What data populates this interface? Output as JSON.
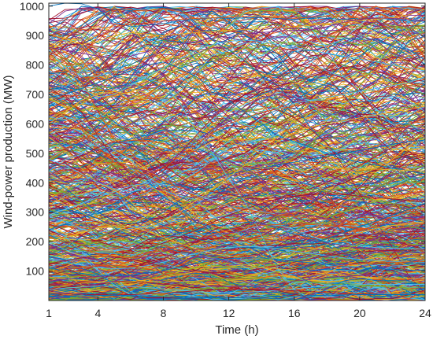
{
  "chart_data": {
    "type": "line",
    "title": "",
    "xlabel": "Time (h)",
    "ylabel": "Wind-power production (MW)",
    "xlim": [
      1,
      24
    ],
    "ylim": [
      0,
      1010
    ],
    "xticks": [
      1,
      4,
      8,
      12,
      16,
      20,
      24
    ],
    "yticks": [
      100,
      200,
      300,
      400,
      500,
      600,
      700,
      800,
      900,
      1000
    ],
    "x": [
      1,
      2,
      3,
      4,
      5,
      6,
      7,
      8,
      9,
      10,
      11,
      12,
      13,
      14,
      15,
      16,
      17,
      18,
      19,
      20,
      21,
      22,
      23,
      24
    ],
    "grid": false,
    "legend": "none",
    "scenario_count": 1000,
    "series_colors": [
      "#0072BD",
      "#D95319",
      "#EDB120",
      "#7E2F8E",
      "#77AC30",
      "#4DBEEE",
      "#A2142F"
    ],
    "series": [
      {
        "values": [
          1000,
          1010,
          1008,
          990,
          945,
          930,
          935,
          940,
          950,
          955,
          960,
          958,
          960,
          962,
          958,
          955,
          960,
          958,
          955,
          960,
          958,
          955,
          950,
          948
        ]
      },
      {
        "values": [
          932,
          928,
          920,
          925,
          930,
          938,
          942,
          950,
          955,
          958,
          960,
          962,
          965,
          963,
          960,
          958,
          962,
          965,
          963,
          960,
          958,
          962,
          955,
          950
        ]
      },
      {
        "values": [
          905,
          890,
          870,
          880,
          900,
          910,
          905,
          900,
          905,
          910,
          915,
          918,
          920,
          925,
          928,
          930,
          935,
          940,
          945,
          950,
          955,
          960,
          970,
          990
        ]
      },
      {
        "values": [
          860,
          850,
          840,
          830,
          820,
          830,
          845,
          860,
          870,
          880,
          890,
          900,
          905,
          910,
          915,
          918,
          920,
          930,
          945,
          955,
          960,
          958,
          955,
          950
        ]
      },
      {
        "values": [
          820,
          780,
          700,
          650,
          600,
          560,
          580,
          620,
          680,
          720,
          760,
          800,
          840,
          870,
          880,
          870,
          850,
          820,
          800,
          780,
          760,
          740,
          720,
          700
        ]
      },
      {
        "values": [
          780,
          760,
          720,
          690,
          700,
          730,
          760,
          790,
          820,
          850,
          870,
          880,
          885,
          880,
          870,
          860,
          850,
          840,
          830,
          820,
          810,
          800,
          790,
          780
        ]
      },
      {
        "values": [
          720,
          690,
          640,
          560,
          480,
          430,
          410,
          440,
          500,
          560,
          620,
          660,
          700,
          720,
          730,
          740,
          760,
          780,
          790,
          800,
          780,
          760,
          740,
          720
        ]
      },
      {
        "values": [
          690,
          700,
          720,
          740,
          760,
          780,
          800,
          810,
          790,
          760,
          720,
          680,
          640,
          600,
          560,
          540,
          520,
          500,
          480,
          470,
          460,
          450,
          440,
          430
        ]
      },
      {
        "values": [
          650,
          620,
          580,
          520,
          470,
          440,
          430,
          450,
          490,
          530,
          570,
          600,
          620,
          640,
          650,
          660,
          670,
          680,
          690,
          700,
          710,
          720,
          730,
          740
        ]
      },
      {
        "values": [
          600,
          640,
          680,
          700,
          710,
          700,
          680,
          650,
          620,
          590,
          560,
          540,
          520,
          500,
          480,
          470,
          460,
          455,
          450,
          448,
          446,
          444,
          442,
          440
        ]
      },
      {
        "values": [
          560,
          520,
          480,
          450,
          430,
          420,
          430,
          460,
          500,
          540,
          580,
          620,
          660,
          690,
          700,
          690,
          670,
          650,
          630,
          610,
          600,
          590,
          585,
          580
        ]
      },
      {
        "values": [
          520,
          540,
          560,
          600,
          640,
          660,
          650,
          620,
          580,
          540,
          500,
          470,
          440,
          420,
          400,
          390,
          380,
          370,
          360,
          350,
          340,
          330,
          320,
          310
        ]
      },
      {
        "values": [
          480,
          460,
          430,
          400,
          380,
          370,
          380,
          400,
          430,
          460,
          500,
          540,
          580,
          620,
          650,
          670,
          680,
          690,
          700,
          710,
          720,
          730,
          740,
          760
        ]
      },
      {
        "values": [
          450,
          470,
          490,
          520,
          540,
          530,
          500,
          460,
          420,
          390,
          370,
          360,
          350,
          345,
          350,
          360,
          380,
          400,
          430,
          460,
          490,
          520,
          550,
          580
        ]
      },
      {
        "values": [
          420,
          380,
          340,
          300,
          270,
          260,
          270,
          300,
          340,
          380,
          410,
          430,
          440,
          450,
          460,
          470,
          480,
          490,
          500,
          510,
          520,
          530,
          540,
          545
        ]
      },
      {
        "values": [
          400,
          420,
          440,
          460,
          470,
          460,
          440,
          410,
          380,
          350,
          330,
          320,
          310,
          300,
          290,
          285,
          280,
          275,
          270,
          268,
          266,
          264,
          262,
          260
        ]
      },
      {
        "values": [
          370,
          340,
          300,
          270,
          250,
          240,
          250,
          270,
          300,
          340,
          380,
          420,
          460,
          500,
          540,
          570,
          590,
          600,
          610,
          620,
          630,
          640,
          650,
          660
        ]
      },
      {
        "values": [
          340,
          360,
          390,
          420,
          440,
          450,
          440,
          420,
          390,
          360,
          330,
          300,
          280,
          260,
          250,
          240,
          235,
          230,
          228,
          226,
          224,
          222,
          220,
          218
        ]
      },
      {
        "values": [
          310,
          290,
          260,
          230,
          210,
          200,
          210,
          230,
          260,
          290,
          320,
          340,
          350,
          355,
          360,
          365,
          370,
          375,
          380,
          385,
          390,
          395,
          400,
          405
        ]
      },
      {
        "values": [
          290,
          310,
          330,
          350,
          370,
          390,
          400,
          395,
          380,
          360,
          340,
          320,
          300,
          280,
          260,
          240,
          220,
          200,
          190,
          185,
          180,
          178,
          176,
          175
        ]
      },
      {
        "values": [
          260,
          240,
          220,
          200,
          185,
          175,
          180,
          195,
          215,
          240,
          265,
          290,
          310,
          330,
          345,
          355,
          360,
          362,
          360,
          355,
          350,
          345,
          340,
          335
        ]
      },
      {
        "values": [
          240,
          260,
          280,
          300,
          310,
          300,
          280,
          255,
          230,
          210,
          195,
          185,
          180,
          178,
          180,
          185,
          195,
          210,
          230,
          250,
          270,
          290,
          310,
          330
        ]
      },
      {
        "values": [
          215,
          195,
          175,
          160,
          150,
          145,
          150,
          165,
          185,
          205,
          225,
          240,
          250,
          255,
          258,
          260,
          258,
          255,
          250,
          245,
          240,
          235,
          230,
          225
        ]
      },
      {
        "values": [
          200,
          215,
          230,
          245,
          255,
          250,
          235,
          215,
          195,
          175,
          160,
          150,
          145,
          142,
          145,
          155,
          170,
          190,
          210,
          230,
          245,
          255,
          262,
          268
        ]
      },
      {
        "values": [
          180,
          165,
          150,
          140,
          135,
          138,
          148,
          165,
          185,
          205,
          220,
          230,
          235,
          232,
          225,
          215,
          205,
          195,
          185,
          178,
          172,
          168,
          165,
          162
        ]
      },
      {
        "values": [
          160,
          175,
          190,
          200,
          205,
          200,
          185,
          165,
          145,
          130,
          120,
          115,
          112,
          115,
          122,
          135,
          150,
          165,
          178,
          188,
          195,
          200,
          202,
          204
        ]
      },
      {
        "values": [
          140,
          130,
          120,
          112,
          108,
          110,
          118,
          130,
          145,
          160,
          172,
          180,
          184,
          182,
          176,
          168,
          160,
          152,
          145,
          140,
          136,
          133,
          131,
          130
        ]
      },
      {
        "values": [
          125,
          135,
          145,
          150,
          148,
          140,
          128,
          115,
          105,
          98,
          95,
          96,
          100,
          108,
          118,
          130,
          142,
          152,
          160,
          165,
          168,
          170,
          171,
          172
        ]
      },
      {
        "values": [
          110,
          100,
          92,
          86,
          84,
          86,
          92,
          102,
          114,
          126,
          136,
          142,
          145,
          144,
          140,
          134,
          128,
          122,
          116,
          112,
          108,
          105,
          103,
          102
        ]
      },
      {
        "values": [
          95,
          104,
          112,
          118,
          120,
          116,
          108,
          98,
          88,
          80,
          75,
          73,
          74,
          78,
          85,
          94,
          104,
          113,
          120,
          125,
          128,
          130,
          131,
          132
        ]
      },
      {
        "values": [
          80,
          74,
          68,
          64,
          62,
          64,
          70,
          78,
          88,
          98,
          106,
          111,
          113,
          112,
          108,
          102,
          96,
          90,
          85,
          81,
          78,
          76,
          75,
          74
        ]
      },
      {
        "values": [
          65,
          72,
          78,
          82,
          83,
          80,
          74,
          66,
          58,
          52,
          48,
          47,
          48,
          52,
          58,
          65,
          72,
          78,
          82,
          85,
          86,
          87,
          87,
          88
        ]
      },
      {
        "values": [
          50,
          46,
          42,
          40,
          39,
          40,
          44,
          50,
          57,
          64,
          70,
          74,
          76,
          75,
          72,
          67,
          62,
          57,
          53,
          50,
          48,
          46,
          45,
          45
        ]
      },
      {
        "values": [
          38,
          42,
          46,
          49,
          50,
          48,
          44,
          39,
          34,
          30,
          28,
          27,
          28,
          31,
          35,
          40,
          45,
          49,
          52,
          54,
          55,
          55,
          55,
          55
        ]
      },
      {
        "values": [
          25,
          23,
          21,
          20,
          19,
          20,
          22,
          25,
          29,
          33,
          36,
          38,
          39,
          38,
          36,
          33,
          30,
          27,
          25,
          23,
          22,
          21,
          21,
          21
        ]
      },
      {
        "values": [
          12,
          14,
          16,
          17,
          18,
          17,
          15,
          13,
          11,
          10,
          9,
          9,
          10,
          11,
          13,
          15,
          17,
          18,
          19,
          20,
          20,
          20,
          20,
          20
        ]
      }
    ]
  }
}
